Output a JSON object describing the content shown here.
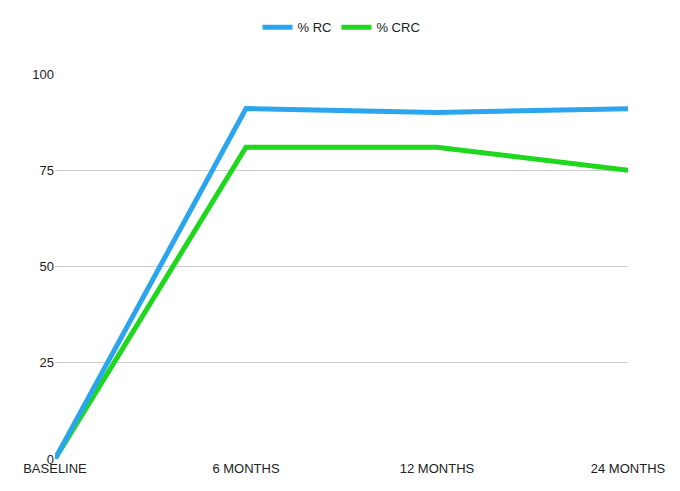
{
  "chart_data": {
    "type": "line",
    "categories": [
      "BASELINE",
      "6 MONTHS",
      "12 MONTHS",
      "24 MONTHS"
    ],
    "series": [
      {
        "name": "% RC",
        "color": "#2ba6ee",
        "values": [
          0,
          91,
          90,
          91
        ]
      },
      {
        "name": "% CRC",
        "color": "#1ed81e",
        "values": [
          0,
          81,
          81,
          75
        ]
      }
    ],
    "ylim": [
      0,
      100
    ],
    "yticks": [
      0,
      25,
      50,
      75,
      100
    ],
    "grid": true,
    "legend": "top",
    "line_style": "solid"
  }
}
